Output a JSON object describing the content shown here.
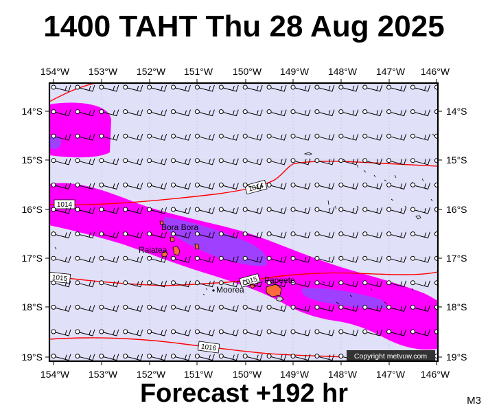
{
  "title": "1400 TAHT Thu 28 Aug 2025",
  "footer": "Forecast +192 hr",
  "code": "M3",
  "copyright": "Copyright metvuw.com",
  "lon_labels": [
    "154°W",
    "153°W",
    "152°W",
    "151°W",
    "150°W",
    "149°W",
    "148°W",
    "147°W",
    "146°W"
  ],
  "lat_labels": [
    "14°S",
    "15°S",
    "16°S",
    "17°S",
    "18°S",
    "19°S"
  ],
  "places": [
    {
      "name": "Bora Bora"
    },
    {
      "name": "Raiatea"
    },
    {
      "name": "Papeete"
    },
    {
      "name": "Moorea"
    }
  ],
  "isobars": [
    "1014",
    "1014",
    "1015",
    "1015",
    "1016"
  ],
  "colors": {
    "background": "#e0e0f8",
    "rain_light": "#ff00ff",
    "rain_heavy": "#9a32ff",
    "isobar": "#ff0000",
    "land": "#ff6a3a"
  }
}
